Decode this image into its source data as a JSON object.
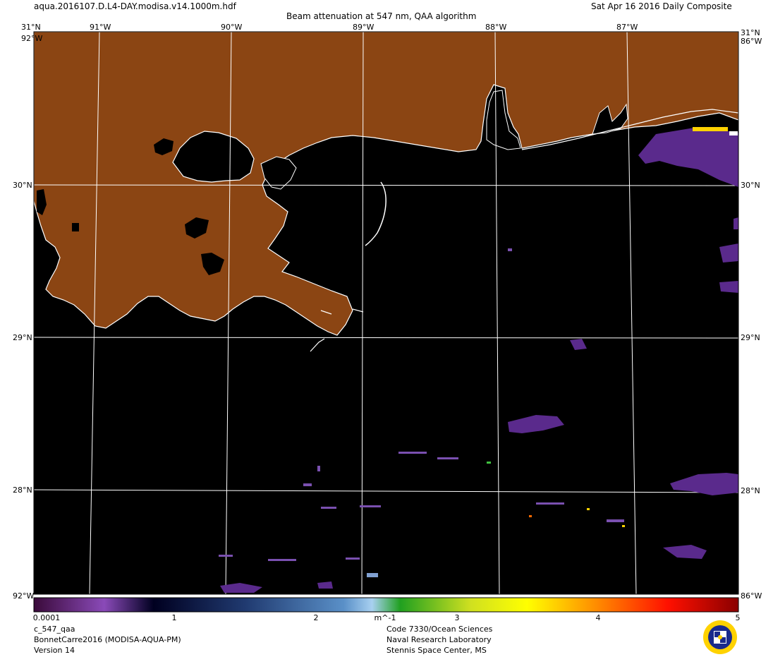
{
  "header": {
    "filename": "aqua.2016107.D.L4-DAY.modisa.v14.1000m.hdf",
    "title": "Beam attenuation at 547 nm, QAA algorithm",
    "date": "Sat Apr 16 2016 Daily Composite"
  },
  "map": {
    "lon_labels": [
      "91°W",
      "90°W",
      "89°W",
      "88°W",
      "87°W"
    ],
    "lat_labels": [
      "30°N",
      "29°N",
      "28°N"
    ],
    "corner_top_left": "31°N",
    "corner_top_right": "31°N",
    "corner_top_left_lon": "92°W",
    "corner_top_right_lon": "86°W",
    "corner_bottom_left": "92°W",
    "corner_bottom_right": "86°W",
    "colors": {
      "land": "#8B4513",
      "water": "#000000",
      "coast": "#ffffff",
      "grid": "#ffffff",
      "plume": "#5a2a8c"
    }
  },
  "colorbar": {
    "ticks": [
      "0.0001",
      "1",
      "2",
      "m^-1",
      "3",
      "4",
      "5"
    ],
    "unit": "m^-1"
  },
  "footer": {
    "product": "c_547_qaa",
    "region": "BonnetCarre2016 (MODISA-AQUA-PM)",
    "version": "Version 14",
    "org_code": "Code 7330/Ocean Sciences",
    "org_name": "Naval Research Laboratory",
    "org_place": "Stennis Space Center, MS"
  }
}
